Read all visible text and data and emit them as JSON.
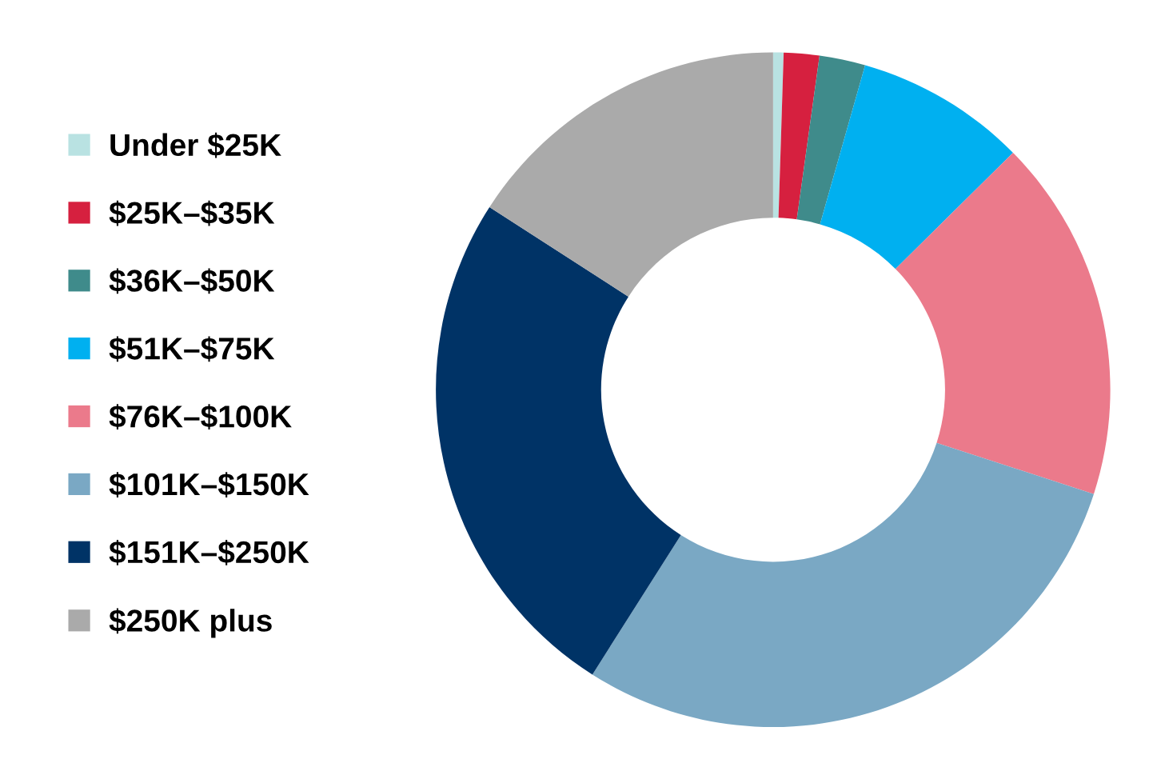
{
  "chart_data": {
    "type": "donut",
    "legend": "left",
    "categories": [
      "Under $25K",
      "$25K–$35K",
      "$36K–$50K",
      "$51K–$75K",
      "$76K–$100K",
      "$101K–$150K",
      "$151K–$250K",
      "$250K plus"
    ],
    "values": [
      0.5,
      1.7,
      2.2,
      8.2,
      17.4,
      29.0,
      25.1,
      15.9
    ],
    "colors": [
      "#b9e2e2",
      "#d6203f",
      "#3f8b8b",
      "#00b0f0",
      "#eb7a8b",
      "#7aa8c4",
      "#003366",
      "#aaaaaa"
    ]
  }
}
